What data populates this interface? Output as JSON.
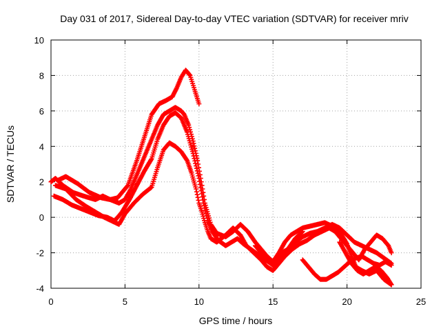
{
  "chart_data": {
    "type": "scatter",
    "title": "Day 031 of 2017, Sidereal Day-to-day VTEC variation (SDTVAR) for receiver mriv",
    "xlabel": "GPS time / hours",
    "ylabel": "SDTVAR / TECUs",
    "xlim": [
      0,
      25
    ],
    "ylim": [
      -4,
      10
    ],
    "xticks": [
      0,
      5,
      10,
      15,
      20,
      25
    ],
    "yticks": [
      -4,
      -2,
      0,
      2,
      4,
      6,
      8,
      10
    ],
    "grid": true,
    "marker": "+",
    "color": "#ff0000",
    "series": [
      {
        "x": [
          0,
          0.3,
          0.8,
          1.5,
          2.2,
          3.0,
          3.5,
          4.0,
          4.5,
          5.2,
          5.8,
          6.3,
          6.8,
          7.3,
          7.8,
          8.2,
          8.5,
          8.8,
          9.1,
          9.4,
          9.7,
          10.0
        ],
        "y": [
          2.0,
          2.2,
          1.8,
          1.4,
          1.2,
          1.0,
          1.2,
          1.0,
          1.1,
          1.8,
          3.2,
          4.5,
          5.8,
          6.4,
          6.6,
          6.8,
          7.3,
          7.9,
          8.3,
          8.0,
          7.2,
          6.4
        ]
      },
      {
        "x": [
          0.5,
          1.0,
          1.8,
          2.6,
          3.4,
          4.0,
          4.6,
          5.0,
          5.4,
          6.0,
          6.6,
          7.2,
          7.6,
          8.0,
          8.4,
          8.8,
          9.0,
          9.3,
          9.6,
          9.9,
          10.2,
          10.4,
          10.6,
          10.8,
          11.2,
          11.8,
          12.3,
          12.8,
          13.3,
          13.8,
          14.2,
          14.6,
          15.0,
          15.3,
          15.6,
          16.0,
          16.5,
          17.0
        ],
        "y": [
          2.1,
          2.3,
          1.9,
          1.4,
          1.1,
          1.0,
          0.8,
          1.0,
          1.6,
          2.8,
          4.0,
          5.2,
          5.8,
          6.0,
          6.2,
          6.0,
          5.8,
          5.2,
          4.3,
          3.2,
          1.8,
          0.8,
          0.2,
          -0.4,
          -0.9,
          -1.1,
          -0.8,
          -0.4,
          -0.8,
          -1.4,
          -1.8,
          -2.2,
          -2.5,
          -2.3,
          -2.0,
          -1.8,
          -1.2,
          -0.8
        ]
      },
      {
        "x": [
          0.3,
          1.0,
          1.7,
          2.4,
          3.0,
          3.6,
          4.1,
          4.6,
          5.0,
          5.6,
          6.2,
          6.8,
          7.2,
          7.6,
          8.0,
          8.4,
          8.8,
          9.2,
          9.5,
          9.8,
          10.0,
          10.2,
          10.4,
          10.6,
          10.8,
          11.2,
          11.8,
          12.3,
          12.8,
          13.2,
          13.7,
          14.2,
          14.6,
          15.0,
          15.4,
          15.8,
          16.3,
          16.8,
          17.3,
          17.8,
          18.3,
          18.8
        ],
        "y": [
          1.8,
          1.6,
          1.0,
          0.6,
          0.3,
          0.0,
          -0.2,
          -0.4,
          0.2,
          0.8,
          1.3,
          1.7,
          2.8,
          3.8,
          4.2,
          4.0,
          3.7,
          3.2,
          2.5,
          1.6,
          0.8,
          0.3,
          -0.3,
          -0.8,
          -1.2,
          -1.4,
          -1.0,
          -0.6,
          -1.0,
          -1.6,
          -2.0,
          -2.4,
          -2.8,
          -3.0,
          -2.6,
          -2.2,
          -1.8,
          -1.5,
          -1.3,
          -1.0,
          -0.8,
          -0.6
        ]
      },
      {
        "x": [
          0.2,
          0.8,
          1.4,
          2.0,
          2.6,
          3.2,
          3.8,
          4.3,
          4.8,
          5.3,
          5.8,
          6.3,
          6.8,
          7.2,
          7.6,
          8.0,
          8.4,
          8.8,
          9.2,
          9.6,
          10.0,
          10.3,
          10.6,
          10.9,
          11.3,
          11.8,
          12.2,
          12.6,
          13.0,
          13.5,
          14.0,
          14.5,
          15.0,
          15.5,
          16.0,
          16.5,
          17.0,
          17.5,
          18.0,
          18.5,
          19.0,
          19.5,
          20.0,
          20.5,
          21.0,
          21.5,
          22.0,
          22.5,
          23.0
        ],
        "y": [
          1.2,
          1.0,
          0.7,
          0.5,
          0.3,
          0.1,
          0.0,
          -0.2,
          0.3,
          1.0,
          1.8,
          2.6,
          3.3,
          4.4,
          5.2,
          5.7,
          5.9,
          5.6,
          4.8,
          3.6,
          2.2,
          0.8,
          -0.2,
          -0.8,
          -1.3,
          -1.6,
          -1.4,
          -1.2,
          -1.5,
          -1.8,
          -2.1,
          -2.4,
          -2.7,
          -2.3,
          -1.8,
          -1.4,
          -1.1,
          -0.9,
          -0.8,
          -0.6,
          -0.4,
          -0.6,
          -1.0,
          -1.4,
          -1.6,
          -1.8,
          -2.0,
          -2.3,
          -2.6
        ]
      },
      {
        "x": [
          13.8,
          14.2,
          14.6,
          15.0,
          15.4,
          15.8,
          16.2,
          16.6,
          17.0,
          17.5,
          18.0,
          18.5,
          19.0,
          19.5,
          20.0,
          20.3,
          20.6,
          21.0,
          21.5,
          22.0,
          22.5,
          23.0
        ],
        "y": [
          -1.6,
          -2.0,
          -2.3,
          -2.5,
          -2.0,
          -1.4,
          -1.0,
          -0.8,
          -0.6,
          -0.5,
          -0.4,
          -0.3,
          -0.5,
          -0.8,
          -1.5,
          -2.2,
          -2.8,
          -3.0,
          -3.2,
          -3.0,
          -3.5,
          -3.8
        ]
      },
      {
        "x": [
          17.0,
          17.4,
          17.8,
          18.2,
          18.6,
          19.0,
          19.4,
          19.8,
          20.2,
          20.6,
          21.0,
          21.4,
          21.8,
          22.2,
          22.6,
          23.0
        ],
        "y": [
          -2.4,
          -2.8,
          -3.2,
          -3.5,
          -3.5,
          -3.3,
          -3.1,
          -2.8,
          -2.5,
          -2.3,
          -2.2,
          -2.4,
          -2.6,
          -2.7,
          -2.5,
          -2.7
        ]
      },
      {
        "x": [
          18.8,
          19.2,
          19.6,
          20.0,
          20.4,
          20.8,
          21.2,
          21.6,
          22.0,
          22.4,
          22.8,
          23.0
        ],
        "y": [
          -0.6,
          -0.8,
          -1.2,
          -1.6,
          -2.0,
          -2.4,
          -1.8,
          -1.4,
          -1.0,
          -1.2,
          -1.6,
          -2.0
        ]
      },
      {
        "x": [
          19.5,
          19.9,
          20.3,
          20.7,
          21.1,
          21.5,
          21.9,
          22.3,
          22.7,
          23.0
        ],
        "y": [
          -1.4,
          -2.0,
          -2.6,
          -3.0,
          -3.2,
          -3.0,
          -2.8,
          -3.0,
          -3.4,
          -3.8
        ]
      }
    ]
  }
}
